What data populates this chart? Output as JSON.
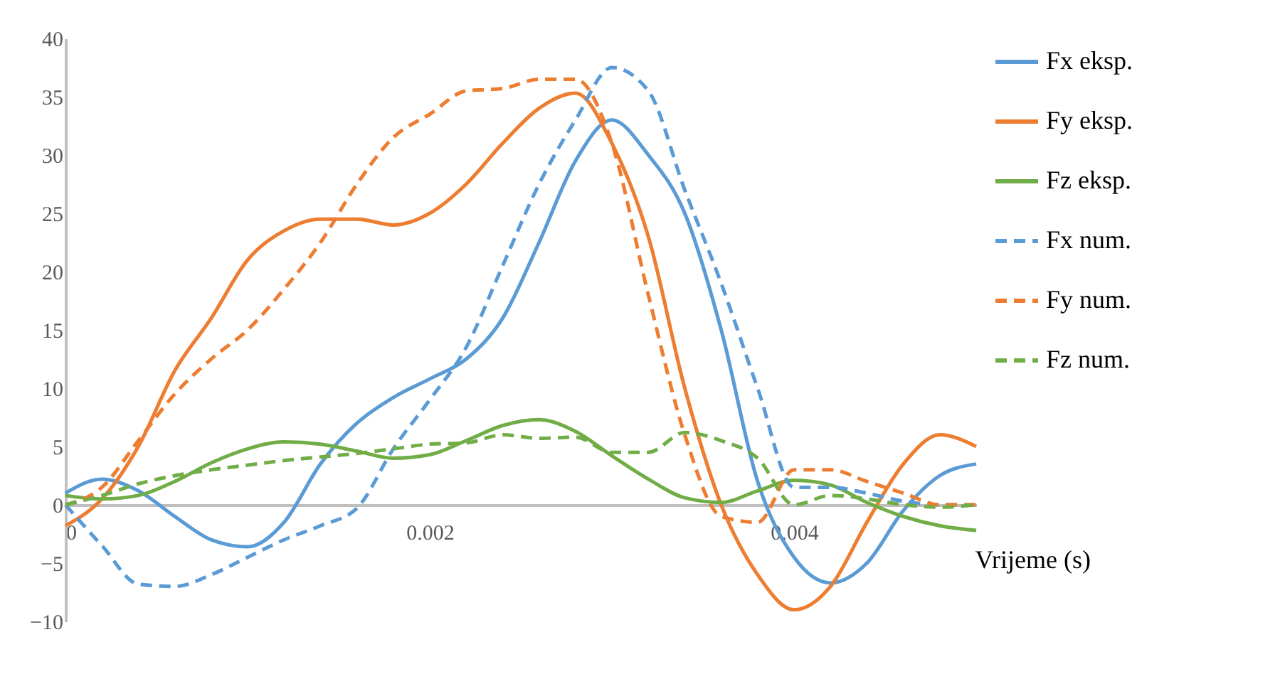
{
  "chart_data": {
    "type": "line",
    "xlabel": "Vrijeme (s)",
    "x": [
      0,
      0.0002,
      0.0004,
      0.0006,
      0.0008,
      0.001,
      0.0012,
      0.0014,
      0.0016,
      0.0018,
      0.002,
      0.0022,
      0.0024,
      0.0026,
      0.0028,
      0.003,
      0.0032,
      0.0034,
      0.0036,
      0.0038,
      0.004,
      0.0042,
      0.0044,
      0.0046,
      0.0048,
      0.005
    ],
    "xlim": [
      0,
      0.005
    ],
    "xticks": [
      0,
      0.002,
      0.004
    ],
    "ylim": [
      -10,
      40
    ],
    "yticks": [
      -10,
      -5,
      0,
      5,
      10,
      15,
      20,
      25,
      30,
      35,
      40
    ],
    "grid": false,
    "legend": "right",
    "marker": "none",
    "series": [
      {
        "name": "Fx eksp.",
        "color": "#5b9bd5",
        "line_style": "solid",
        "values": [
          1,
          2.2,
          1.2,
          -1,
          -3,
          -3.6,
          -1.5,
          3.5,
          7,
          9.2,
          10.8,
          12.5,
          16,
          22.5,
          29.5,
          33,
          30,
          25,
          15,
          2,
          -4.5,
          -6.7,
          -5,
          -0.5,
          2.5,
          3.5
        ]
      },
      {
        "name": "Fy eksp.",
        "color": "#ed7d31",
        "line_style": "solid",
        "values": [
          -1.8,
          0.5,
          5,
          11.5,
          16,
          21,
          23.5,
          24.5,
          24.5,
          24,
          25,
          27.5,
          31,
          34,
          35.3,
          31,
          23,
          10,
          0,
          -6,
          -9,
          -7,
          -1.5,
          3.5,
          6,
          5
        ]
      },
      {
        "name": "Fz eksp.",
        "color": "#70ad47",
        "line_style": "solid",
        "values": [
          0.8,
          0.5,
          0.8,
          2,
          3.6,
          4.8,
          5.4,
          5.2,
          4.6,
          4,
          4.3,
          5.5,
          6.8,
          7.3,
          6.3,
          4.2,
          2.2,
          0.6,
          0.2,
          1.2,
          2.1,
          1.7,
          0.2,
          -1,
          -1.8,
          -2.2
        ]
      },
      {
        "name": "Fx num.",
        "color": "#5b9bd5",
        "line_style": "dashed",
        "values": [
          0,
          -3.5,
          -6.8,
          -7,
          -6,
          -4.5,
          -3,
          -1.8,
          -0.3,
          4.8,
          9,
          13.5,
          20.5,
          27.5,
          33,
          37.5,
          35.5,
          27,
          19,
          10,
          1.5,
          1.5,
          1,
          0.3,
          0,
          0
        ]
      },
      {
        "name": "Fy num.",
        "color": "#ed7d31",
        "line_style": "dashed",
        "values": [
          0,
          1.5,
          5.5,
          9.5,
          12.5,
          15,
          18.5,
          22.5,
          27.5,
          31.5,
          33.5,
          35.5,
          35.7,
          36.5,
          36.5,
          31,
          18,
          6,
          -1,
          -1.5,
          3,
          3,
          2,
          1,
          0,
          0
        ]
      },
      {
        "name": "Fz num.",
        "color": "#70ad47",
        "line_style": "dashed",
        "values": [
          0,
          0.8,
          1.8,
          2.5,
          3,
          3.4,
          3.8,
          4.1,
          4.4,
          4.8,
          5.2,
          5.3,
          6,
          5.7,
          5.8,
          4.5,
          4.5,
          6.2,
          5.5,
          4,
          0,
          0.8,
          0.5,
          0,
          -0.2,
          0
        ]
      }
    ]
  }
}
